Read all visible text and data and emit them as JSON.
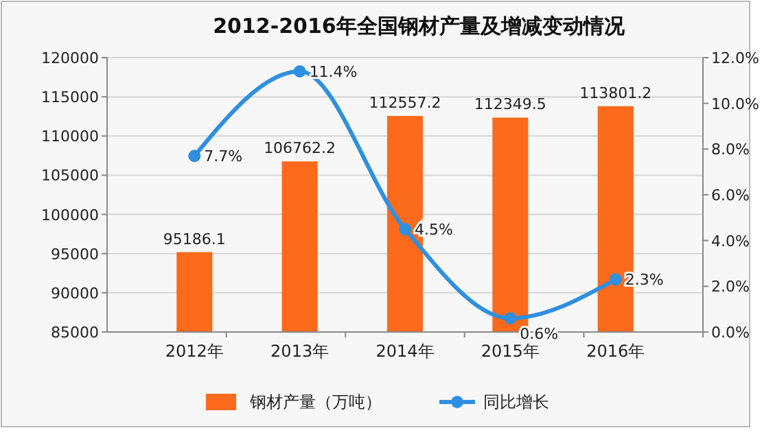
{
  "chart_data": {
    "type": "bar",
    "title": "2012-2016年全国钢材产量及增减变动情况",
    "categories": [
      "2012年",
      "2013年",
      "2014年",
      "2015年",
      "2016年"
    ],
    "series": [
      {
        "name": "钢材产量（万吨）",
        "color": "#fc6a1c",
        "values": [
          95186.1,
          106762.2,
          112557.2,
          112349.5,
          113801.2
        ],
        "value_labels": [
          "95186.1",
          "106762.2",
          "112557.2",
          "112349.5",
          "113801.2"
        ]
      },
      {
        "name": "同比增长",
        "type": "line",
        "axis": "y2",
        "color": "#2f8fe0",
        "values": [
          7.7,
          11.4,
          4.5,
          0.6,
          2.3
        ],
        "value_labels": [
          "7.7%",
          "11.4%",
          "4.5%",
          "0.6%",
          "2.3%"
        ]
      }
    ],
    "ylim": [
      85000,
      120000
    ],
    "yticks": [
      85000,
      90000,
      95000,
      100000,
      105000,
      110000,
      115000,
      120000
    ],
    "y2lim": [
      0,
      12
    ],
    "y2ticks": [
      {
        "value": 0,
        "label": "0.0%"
      },
      {
        "value": 2,
        "label": "2.0%"
      },
      {
        "value": 4,
        "label": "4.0%"
      },
      {
        "value": 6,
        "label": "6.0%"
      },
      {
        "value": 8,
        "label": "8.0%"
      },
      {
        "value": 10,
        "label": "10.0%"
      },
      {
        "value": 12,
        "label": "12.0%"
      }
    ],
    "grid": "y",
    "legend": "bottom",
    "marker": "circle"
  }
}
